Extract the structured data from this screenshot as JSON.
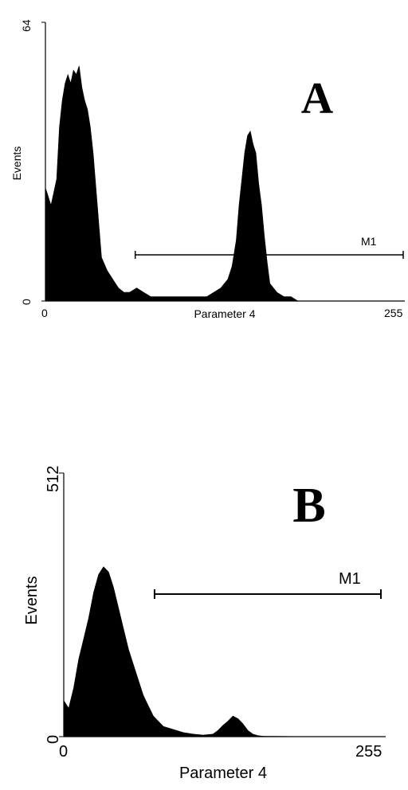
{
  "chart_data": [
    {
      "type": "area",
      "panel_label": "A",
      "xlabel": "Parameter 4",
      "ylabel": "Events",
      "xlim": [
        0,
        255
      ],
      "ylim": [
        0,
        64
      ],
      "x_ticks": [
        "0",
        "255"
      ],
      "y_ticks": [
        "0",
        "64"
      ],
      "grid": false,
      "marker": {
        "label": "M1",
        "x_start": 64,
        "x_end": 255
      },
      "series": [
        {
          "x": [
            0,
            4,
            8,
            10,
            12,
            14,
            16,
            18,
            20,
            22,
            24,
            26,
            28,
            30,
            32,
            34,
            36,
            38,
            40,
            44,
            48,
            52,
            56,
            60,
            65,
            70,
            75,
            80,
            90,
            100,
            110,
            115,
            120,
            125,
            130,
            133,
            136,
            138,
            140,
            142,
            144,
            146,
            148,
            150,
            152,
            154,
            156,
            158,
            160,
            165,
            170,
            175,
            180,
            190,
            200,
            255
          ],
          "values": [
            26,
            22,
            28,
            40,
            46,
            50,
            52,
            50,
            53,
            52,
            54,
            49,
            46,
            44,
            40,
            34,
            26,
            18,
            10,
            7,
            5,
            3,
            2,
            2,
            3,
            2,
            1,
            1,
            1,
            1,
            1,
            1,
            2,
            3,
            5,
            8,
            14,
            22,
            28,
            34,
            38,
            39,
            36,
            34,
            27,
            22,
            15,
            9,
            4,
            2,
            1,
            1,
            0,
            0,
            0,
            0
          ]
        }
      ]
    },
    {
      "type": "area",
      "panel_label": "B",
      "xlabel": "Parameter 4",
      "ylabel": "Events",
      "xlim": [
        0,
        255
      ],
      "ylim": [
        0,
        512
      ],
      "x_ticks": [
        "0",
        "255"
      ],
      "y_ticks": [
        "0",
        "512"
      ],
      "grid": false,
      "marker": {
        "label": "M1",
        "x_start": 73,
        "x_end": 255
      },
      "series": [
        {
          "x": [
            0,
            4,
            8,
            12,
            16,
            20,
            24,
            28,
            32,
            36,
            40,
            44,
            48,
            52,
            56,
            60,
            64,
            68,
            72,
            76,
            80,
            88,
            96,
            104,
            112,
            120,
            124,
            128,
            132,
            136,
            140,
            144,
            148,
            152,
            156,
            160,
            200,
            255
          ],
          "values": [
            70,
            55,
            95,
            150,
            190,
            230,
            280,
            315,
            330,
            320,
            290,
            250,
            210,
            170,
            140,
            110,
            80,
            60,
            40,
            30,
            20,
            14,
            8,
            5,
            3,
            5,
            12,
            22,
            30,
            40,
            35,
            25,
            12,
            5,
            2,
            1,
            0,
            0
          ]
        }
      ]
    }
  ]
}
